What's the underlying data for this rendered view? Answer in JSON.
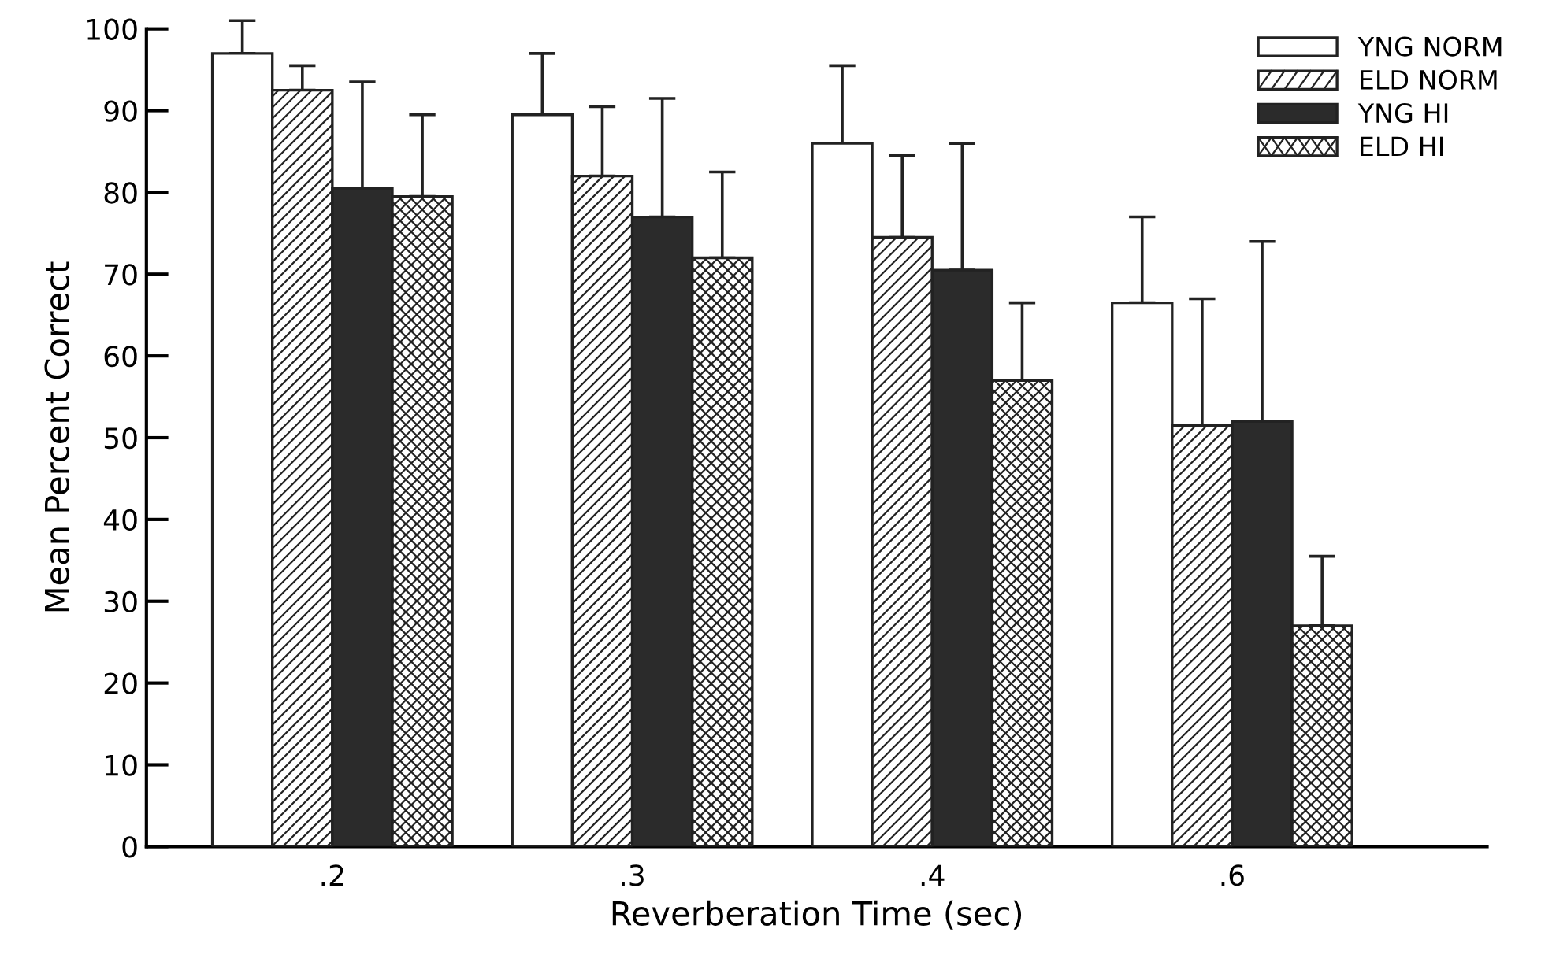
{
  "chart_data": {
    "type": "bar",
    "xlabel": "Reverberation Time (sec)",
    "ylabel": "Mean Percent Correct",
    "categories": [
      ".2",
      ".3",
      ".4",
      ".6"
    ],
    "series": [
      {
        "name": "YNG NORM",
        "color": "#ffffff",
        "values": [
          97,
          89.5,
          86,
          66.5
        ],
        "errors": [
          [
            97,
            101
          ],
          [
            89.5,
            97
          ],
          [
            86,
            95.5
          ],
          [
            66.5,
            77
          ]
        ]
      },
      {
        "name": "ELD NORM",
        "color": "#ffffff",
        "values": [
          92.5,
          82,
          74.5,
          51.5
        ],
        "errors": [
          [
            92.5,
            95.5
          ],
          [
            82,
            90.5
          ],
          [
            74.5,
            84.5
          ],
          [
            51.5,
            67
          ]
        ]
      },
      {
        "name": "YNG HI",
        "color": "#2b2b2b",
        "values": [
          80.5,
          77,
          70.5,
          52
        ],
        "errors": [
          [
            80.5,
            93.5
          ],
          [
            77,
            91.5
          ],
          [
            70.5,
            86
          ],
          [
            52,
            74
          ]
        ]
      },
      {
        "name": "ELD HI",
        "color": "#ffffff",
        "values": [
          79.5,
          72,
          57,
          27
        ],
        "errors": [
          [
            79.5,
            89.5
          ],
          [
            72,
            82.5
          ],
          [
            57,
            66.5
          ],
          [
            27,
            35.5
          ]
        ]
      }
    ],
    "ylim": [
      0,
      100
    ],
    "yticks": [
      0,
      10,
      20,
      30,
      40,
      50,
      60,
      70,
      80,
      90,
      100
    ],
    "grid": false,
    "legend": "top right"
  }
}
